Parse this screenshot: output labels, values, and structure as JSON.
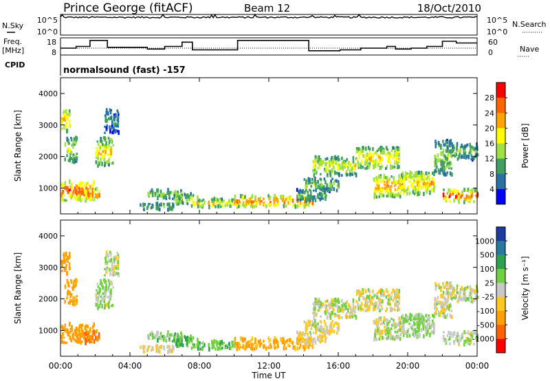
{
  "header": {
    "title": "Prince George (fitACF)",
    "beam": "Beam 12",
    "date": "18/Oct/2010"
  },
  "noise_panel": {
    "left_label": "N.Sky",
    "right_label": "N.Search",
    "left_ticks": [
      "10^5",
      "10^0"
    ],
    "right_ticks": [
      "10^5",
      "10^0"
    ]
  },
  "freq_panel": {
    "left_label_1": "Freq.",
    "left_label_2": "[MHz]",
    "right_label": "Nave",
    "left_ticks": [
      "18",
      "8"
    ],
    "right_ticks": [
      "60",
      "0"
    ],
    "freq_steps": [
      {
        "t": 0.0,
        "mhz": 12.0
      },
      {
        "t": 0.9,
        "mhz": 13.0
      },
      {
        "t": 1.7,
        "mhz": 16.5
      },
      {
        "t": 2.7,
        "mhz": 12.5
      },
      {
        "t": 5.0,
        "mhz": 11.5
      },
      {
        "t": 6.0,
        "mhz": 13.0
      },
      {
        "t": 7.0,
        "mhz": 15.5
      },
      {
        "t": 7.6,
        "mhz": 11.0
      },
      {
        "t": 10.2,
        "mhz": 16.5
      },
      {
        "t": 14.3,
        "mhz": 10.5
      },
      {
        "t": 16.1,
        "mhz": 11.0
      },
      {
        "t": 17.3,
        "mhz": 12.0
      },
      {
        "t": 18.8,
        "mhz": 13.0
      },
      {
        "t": 19.3,
        "mhz": 11.5
      },
      {
        "t": 20.2,
        "mhz": 12.0
      },
      {
        "t": 21.1,
        "mhz": 13.0
      },
      {
        "t": 22.0,
        "mhz": 16.0
      },
      {
        "t": 22.8,
        "mhz": 15.0
      },
      {
        "t": 24.0,
        "mhz": 15.0
      }
    ]
  },
  "cpid": {
    "label": "CPID",
    "value": "normalsound (fast) -157"
  },
  "power_panel": {
    "ylabel": "Slant Range [km]",
    "cbar_label": "Power [dB]",
    "cbar_ticks": [
      "28",
      "24",
      "20",
      "16",
      "12",
      "8",
      "4"
    ],
    "cbar_colors": [
      "#ff0000",
      "#ff6600",
      "#ffa500",
      "#ffff00",
      "#a0e040",
      "#40a060",
      "#2a70a0",
      "#0000ff"
    ]
  },
  "velocity_panel": {
    "ylabel": "Slant Range [km]",
    "cbar_label": "Velocity [m s⁻¹]",
    "cbar_ticks": [
      "1000",
      "500",
      "100",
      "25",
      "-25",
      "-100",
      "-500",
      "-1000"
    ],
    "cbar_colors": [
      "#1e3ca0",
      "#2878a0",
      "#30a050",
      "#70d040",
      "#c8c8c8",
      "#ffc820",
      "#ffa000",
      "#ff6400",
      "#ff0000"
    ]
  },
  "axes": {
    "xlabel": "Time UT",
    "x_ticks": [
      "00:00",
      "04:00",
      "08:00",
      "12:00",
      "16:00",
      "20:00",
      "00:00"
    ],
    "y_ticks": [
      "4000",
      "3000",
      "2000",
      "1000"
    ]
  },
  "chart_data": {
    "type": "heatmap",
    "x_units": "hours UT",
    "xlim": [
      0,
      24
    ],
    "ylim_km": [
      180,
      4500
    ],
    "power_db_range": [
      0,
      32
    ],
    "velocity_range": [
      -1000,
      1000
    ],
    "noise_log_range": [
      0,
      5
    ],
    "nave_range": [
      0,
      60
    ],
    "freq_range_mhz": [
      8,
      18
    ],
    "echo_regions": [
      {
        "t0": 0.0,
        "t1": 1.9,
        "r0": 600,
        "r1": 1200,
        "power": 28,
        "vel": -300
      },
      {
        "t0": 0.0,
        "t1": 0.5,
        "r0": 2800,
        "r1": 3500,
        "power": 22,
        "vel": -400
      },
      {
        "t0": 0.2,
        "t1": 0.9,
        "r0": 1800,
        "r1": 2600,
        "power": 16,
        "vel": -150
      },
      {
        "t0": 1.3,
        "t1": 2.2,
        "r0": 600,
        "r1": 1000,
        "power": 26,
        "vel": -500
      },
      {
        "t0": 2.0,
        "t1": 3.0,
        "r0": 1700,
        "r1": 2600,
        "power": 20,
        "vel": 30
      },
      {
        "t0": 2.5,
        "t1": 3.3,
        "r0": 2700,
        "r1": 3500,
        "power": 8,
        "vel": 0
      },
      {
        "t0": 4.5,
        "t1": 6.5,
        "r0": 300,
        "r1": 500,
        "power": 12,
        "vel": -30
      },
      {
        "t0": 5.0,
        "t1": 7.0,
        "r0": 650,
        "r1": 950,
        "power": 14,
        "vel": 60
      },
      {
        "t0": 6.5,
        "t1": 8.0,
        "r0": 500,
        "r1": 800,
        "power": 16,
        "vel": 80
      },
      {
        "t0": 7.5,
        "t1": 10.0,
        "r0": 380,
        "r1": 650,
        "power": 20,
        "vel": 70
      },
      {
        "t0": 10.0,
        "t1": 14.5,
        "r0": 400,
        "r1": 750,
        "power": 26,
        "vel": -120
      },
      {
        "t0": 13.5,
        "t1": 15.3,
        "r0": 600,
        "r1": 950,
        "power": 12,
        "vel": -40
      },
      {
        "t0": 14.5,
        "t1": 17.0,
        "r0": 1400,
        "r1": 2000,
        "power": 18,
        "vel": 0
      },
      {
        "t0": 14.0,
        "t1": 16.0,
        "r0": 900,
        "r1": 1300,
        "power": 14,
        "vel": -20
      },
      {
        "t0": 17.0,
        "t1": 19.5,
        "r0": 1600,
        "r1": 2300,
        "power": 20,
        "vel": -10
      },
      {
        "t0": 18.0,
        "t1": 19.8,
        "r0": 700,
        "r1": 1400,
        "power": 24,
        "vel": 0
      },
      {
        "t0": 19.5,
        "t1": 21.5,
        "r0": 800,
        "r1": 1500,
        "power": 22,
        "vel": 40
      },
      {
        "t0": 21.5,
        "t1": 22.5,
        "r0": 1400,
        "r1": 2500,
        "power": 14,
        "vel": 0
      },
      {
        "t0": 22.0,
        "t1": 24.0,
        "r0": 550,
        "r1": 950,
        "power": 28,
        "vel": 20
      },
      {
        "t0": 22.5,
        "t1": 24.0,
        "r0": 1900,
        "r1": 2400,
        "power": 12,
        "vel": 0
      }
    ]
  }
}
